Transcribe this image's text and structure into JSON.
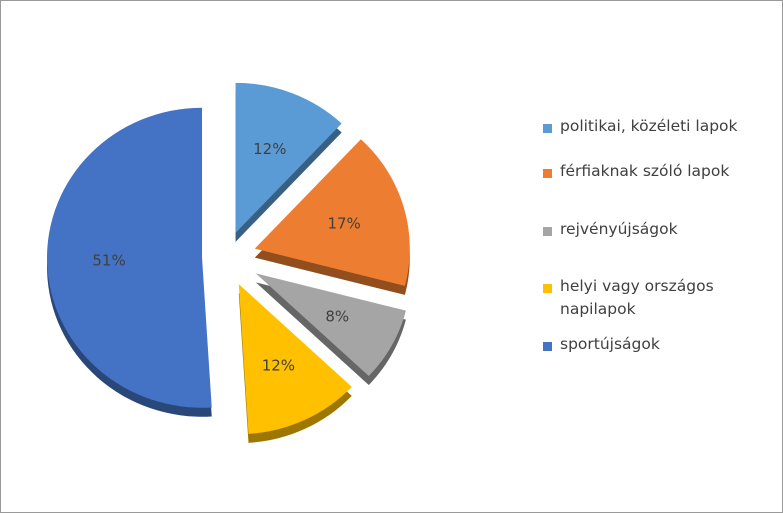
{
  "chart_data": {
    "type": "pie",
    "title": "",
    "slices": [
      {
        "name": "politikai, közéleti lapok",
        "value": 12,
        "label": "12%",
        "color": "#5b9bd5"
      },
      {
        "name": "férfiaknak szóló lapok",
        "value": 17,
        "label": "17%",
        "color": "#ed7d31"
      },
      {
        "name": "rejvényújságok",
        "value": 8,
        "label": "8%",
        "color": "#a5a5a5"
      },
      {
        "name": "helyi vagy országos napilapok",
        "value": 12,
        "label": "12%",
        "color": "#ffc000"
      },
      {
        "name": "sportújságok",
        "value": 51,
        "label": "51%",
        "color": "#4472c4"
      }
    ],
    "legend_position": "right",
    "exploded": true,
    "style": "3d"
  }
}
